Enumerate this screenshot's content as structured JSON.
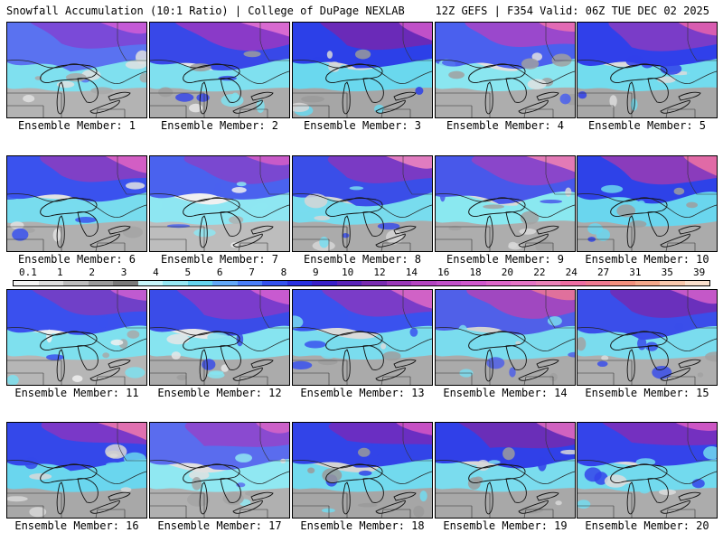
{
  "header": {
    "left": "Snowfall Accumulation (10:1 Ratio) | College of DuPage NEXLAB",
    "right": "12Z GEFS | F354 Valid: 06Z TUE DEC 02 2025"
  },
  "panels": [
    {
      "label": "Ensemble Member: 1",
      "palette": [
        "#e0e0e0",
        "#a8a8a8",
        "#7fe0ef",
        "#5a72f0",
        "#7a4ad8",
        "#c45ad6"
      ]
    },
    {
      "label": "Ensemble Member: 2",
      "palette": [
        "#e6e6e6",
        "#9c9c9c",
        "#7fe0ef",
        "#3848e8",
        "#8a3ac8",
        "#d86ad0"
      ]
    },
    {
      "label": "Ensemble Member: 3",
      "palette": [
        "#d8d8d8",
        "#9a9a9a",
        "#6ad8ee",
        "#2c40e8",
        "#6a2ab8",
        "#c050c8"
      ]
    },
    {
      "label": "Ensemble Member: 4",
      "palette": [
        "#e0e0e0",
        "#a0a0a0",
        "#8ae6f0",
        "#4a60ee",
        "#9a48cc",
        "#e26ab4"
      ]
    },
    {
      "label": "Ensemble Member: 5",
      "palette": [
        "#dcdcdc",
        "#9a9a9a",
        "#72dcee",
        "#3040ea",
        "#7a3cc8",
        "#d85cb0"
      ]
    },
    {
      "label": "Ensemble Member: 6",
      "palette": [
        "#e2e2e2",
        "#a4a4a4",
        "#78dcee",
        "#3a52ee",
        "#8040c6",
        "#d25ec4"
      ]
    },
    {
      "label": "Ensemble Member: 7",
      "palette": [
        "#f0f0f0",
        "#b0b0b0",
        "#8ee6f2",
        "#4a62ee",
        "#7a48d0",
        "#c85ac8"
      ]
    },
    {
      "label": "Ensemble Member: 8",
      "palette": [
        "#d6d6d6",
        "#a0a0a0",
        "#78dcee",
        "#3a4ee8",
        "#7a3ac4",
        "#e07cc0"
      ]
    },
    {
      "label": "Ensemble Member: 9",
      "palette": [
        "#d8d8d8",
        "#a2a2a2",
        "#8ae8f0",
        "#4858ea",
        "#8a46ca",
        "#e27ab6"
      ]
    },
    {
      "label": "Ensemble Member: 10",
      "palette": [
        "#dedede",
        "#9e9e9e",
        "#6ad6ee",
        "#2e42e8",
        "#8a3cbc",
        "#e06aa6"
      ]
    },
    {
      "label": "Ensemble Member: 11",
      "palette": [
        "#f0f0f0",
        "#a8a8a8",
        "#7ee0ee",
        "#3a50ee",
        "#7040c8",
        "#c05ad0"
      ]
    },
    {
      "label": "Ensemble Member: 12",
      "palette": [
        "#e6e6e6",
        "#9c9c9c",
        "#86e4f0",
        "#3a4ce8",
        "#7a3ccc",
        "#c85ad0"
      ]
    },
    {
      "label": "Ensemble Member: 13",
      "palette": [
        "#dadada",
        "#9e9e9e",
        "#7adcee",
        "#3a52ee",
        "#7a3cc8",
        "#d062c6"
      ]
    },
    {
      "label": "Ensemble Member: 14",
      "palette": [
        "#d2d2d2",
        "#a0a0a0",
        "#7adcee",
        "#5060e8",
        "#a048c0",
        "#e0709c"
      ]
    },
    {
      "label": "Ensemble Member: 15",
      "palette": [
        "#dadada",
        "#a2a2a2",
        "#7adcee",
        "#3a4eea",
        "#6a30bc",
        "#c458c8"
      ]
    },
    {
      "label": "Ensemble Member: 16",
      "palette": [
        "#d8d8d8",
        "#9c9c9c",
        "#6ad6ee",
        "#3448ea",
        "#7a38c8",
        "#e070b0"
      ]
    },
    {
      "label": "Ensemble Member: 17",
      "palette": [
        "#e0e0e0",
        "#a4a4a4",
        "#90e8f2",
        "#5a6cee",
        "#8a4ad0",
        "#cc60c8"
      ]
    },
    {
      "label": "Ensemble Member: 18",
      "palette": [
        "#d4d4d4",
        "#9a9a9a",
        "#72daee",
        "#3244e8",
        "#6a2ec2",
        "#c650c4"
      ]
    },
    {
      "label": "Ensemble Member: 19",
      "palette": [
        "#d8d8d8",
        "#9c9c9c",
        "#7adcee",
        "#3040e8",
        "#6a2eb8",
        "#d062c0"
      ]
    },
    {
      "label": "Ensemble Member: 20",
      "palette": [
        "#dcdcdc",
        "#a0a0a0",
        "#72daee",
        "#3444ea",
        "#7430c0",
        "#cc56c4"
      ]
    }
  ],
  "colorbar": {
    "labels": [
      "0.1",
      "1",
      "2",
      "3",
      "4",
      "5",
      "6",
      "7",
      "8",
      "9",
      "10",
      "12",
      "14",
      "16",
      "18",
      "20",
      "22",
      "24",
      "27",
      "31",
      "35",
      "39"
    ],
    "colors": [
      "#f4f4f4",
      "#dcdcdc",
      "#bcbcbc",
      "#9a9a9a",
      "#7a7a7a",
      "#c6f4f8",
      "#96e8f2",
      "#64d4ee",
      "#62a8f6",
      "#4a7ef6",
      "#3452ee",
      "#2a30e0",
      "#3a20c8",
      "#5a24b8",
      "#7a2cb0",
      "#9a38b8",
      "#b444c0",
      "#c250c8",
      "#d058cc",
      "#dc66c8",
      "#e474c4",
      "#ea82b8",
      "#ee6ea2",
      "#f07a90",
      "#f2907c",
      "#f4a88a",
      "#f8c8ac",
      "#fae0cc"
    ]
  }
}
